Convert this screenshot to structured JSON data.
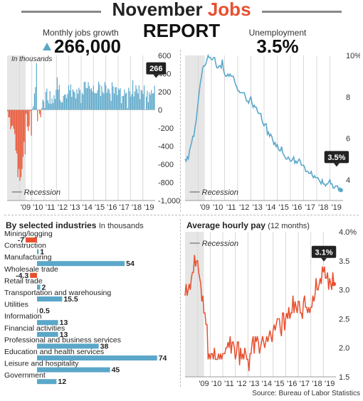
{
  "header": {
    "title_main": "November",
    "title_accent": "Jobs",
    "subtitle": "REPORT"
  },
  "kpis": {
    "jobs_label": "Monthly jobs growth",
    "jobs_value": "266,000",
    "unemp_label": "Unemployment",
    "unemp_value": "3.5%"
  },
  "colors": {
    "blue": "#5aa7c9",
    "red": "#e8502f",
    "recession_shade": "#e6e6e6",
    "callout": "#222222",
    "accent_text": "#e8502f"
  },
  "source": "Source: Bureau of Labor Statistics",
  "chart_data": [
    {
      "id": "jobs",
      "type": "bar",
      "annotation_units": "In thousands",
      "recession_label": "Recession",
      "recession_range": [
        2007.92,
        2009.5
      ],
      "ylim": [
        -1000,
        600
      ],
      "yticks": [
        600,
        400,
        200,
        0,
        -200,
        -400,
        -600,
        -800,
        -1000
      ],
      "ytick_labels": [
        "600",
        "400",
        "200",
        "0",
        "-200",
        "-400",
        "-600",
        "-800",
        "-1,000"
      ],
      "xlim": [
        2008.0,
        2020.0
      ],
      "xtick_labels": [
        "'09",
        "'10",
        "'11",
        "'12",
        "'13",
        "'14",
        "'15",
        "'16",
        "'17",
        "'18",
        "'19"
      ],
      "xtick_years": [
        2009,
        2010,
        2011,
        2012,
        2013,
        2014,
        2015,
        2016,
        2017,
        2018,
        2019
      ],
      "last_value_label": "266",
      "grid": "x",
      "values": [
        -14,
        -86,
        -80,
        -214,
        -182,
        -172,
        -210,
        -267,
        -450,
        -481,
        -743,
        -652,
        -781,
        -741,
        -652,
        -519,
        -352,
        -490,
        -45,
        -187,
        -234,
        -178,
        -12,
        -285,
        14,
        39,
        180,
        251,
        516,
        -126,
        -6,
        -46,
        -82,
        20,
        113,
        94,
        19,
        199,
        234,
        106,
        71,
        207,
        65,
        125,
        75,
        161,
        119,
        222,
        359,
        223,
        276,
        108,
        82,
        84,
        153,
        167,
        170,
        129,
        174,
        268,
        216,
        282,
        144,
        227,
        208,
        191,
        126,
        227,
        178,
        244,
        220,
        75,
        187,
        170,
        306,
        311,
        243,
        240,
        305,
        263,
        226,
        240,
        203,
        269,
        187,
        185,
        183,
        218,
        310,
        280,
        152,
        262,
        198,
        181,
        306,
        271,
        190,
        236,
        225,
        182,
        100,
        304,
        259,
        181,
        249,
        251,
        164,
        240,
        221,
        238,
        73,
        153,
        153,
        224,
        178,
        190,
        18,
        244,
        205,
        145,
        176,
        326,
        148,
        202,
        271,
        230,
        182,
        270,
        118,
        223,
        211,
        175,
        268,
        1,
        147,
        210,
        85,
        193,
        166,
        219,
        180,
        185,
        266
      ]
    },
    {
      "id": "unemployment",
      "type": "line",
      "recession_label": "Recession",
      "recession_range": [
        2007.92,
        2009.5
      ],
      "ylim": [
        3,
        10
      ],
      "yticks": [
        10,
        8,
        6,
        4
      ],
      "ytick_labels": [
        "10%",
        "8",
        "6",
        "4"
      ],
      "xlim": [
        2008.0,
        2020.0
      ],
      "xtick_labels": [
        "'09",
        "'10",
        "'11",
        "'12",
        "'13",
        "'14",
        "'15",
        "'16",
        "'17",
        "'18",
        "'19"
      ],
      "xtick_years": [
        2009,
        2010,
        2011,
        2012,
        2013,
        2014,
        2015,
        2016,
        2017,
        2018,
        2019
      ],
      "last_value_label": "3.5%",
      "start_year": 2008.0,
      "values": [
        5.0,
        4.9,
        5.1,
        5.0,
        5.4,
        5.6,
        5.8,
        6.1,
        6.1,
        6.5,
        6.8,
        7.3,
        7.8,
        8.3,
        8.7,
        9.0,
        9.4,
        9.5,
        9.5,
        9.6,
        9.8,
        10.0,
        9.9,
        9.9,
        9.8,
        9.8,
        9.9,
        9.9,
        9.6,
        9.4,
        9.4,
        9.5,
        9.5,
        9.4,
        9.8,
        9.3,
        9.1,
        9.0,
        9.0,
        9.1,
        9.0,
        9.1,
        9.0,
        9.0,
        9.0,
        8.8,
        8.6,
        8.5,
        8.3,
        8.3,
        8.2,
        8.2,
        8.2,
        8.2,
        8.2,
        8.0,
        7.8,
        7.8,
        7.7,
        7.9,
        8.0,
        7.7,
        7.5,
        7.6,
        7.5,
        7.5,
        7.3,
        7.2,
        7.2,
        7.2,
        6.9,
        6.7,
        6.6,
        6.7,
        6.7,
        6.2,
        6.3,
        6.1,
        6.2,
        6.1,
        5.9,
        5.7,
        5.8,
        5.6,
        5.7,
        5.5,
        5.4,
        5.4,
        5.6,
        5.3,
        5.2,
        5.1,
        5.0,
        5.0,
        5.1,
        5.0,
        4.9,
        4.9,
        5.0,
        5.1,
        4.8,
        4.9,
        4.8,
        4.9,
        5.0,
        4.9,
        4.7,
        4.7,
        4.7,
        4.6,
        4.4,
        4.4,
        4.4,
        4.3,
        4.3,
        4.4,
        4.2,
        4.1,
        4.2,
        4.1,
        4.1,
        4.1,
        4.0,
        3.9,
        3.8,
        4.0,
        3.8,
        3.8,
        3.7,
        3.8,
        3.8,
        3.9,
        4.0,
        3.8,
        3.8,
        3.6,
        3.6,
        3.7,
        3.7,
        3.7,
        3.5,
        3.6,
        3.5
      ]
    },
    {
      "id": "industries",
      "type": "bar",
      "title": "By selected industries",
      "units": "In thousands",
      "categories": [
        "Mining/logging",
        "Construction",
        "Manufacturing",
        "Wholesale trade",
        "Retail trade",
        "Transportation and warehousing",
        "Utilities",
        "Information",
        "Financial activities",
        "Professional and business services",
        "Education and health services",
        "Leisure and hospitality",
        "Government"
      ],
      "values": [
        -7,
        1,
        54,
        -4.3,
        2,
        15.5,
        0.5,
        13,
        13,
        38,
        74,
        45,
        12
      ],
      "value_labels": [
        "-7",
        "1",
        "54",
        "-4.3",
        "2",
        "15.5",
        "0.5",
        "13",
        "13",
        "38",
        "74",
        "45",
        "12"
      ]
    },
    {
      "id": "wages",
      "type": "line",
      "title": "Average hourly pay",
      "title_note": "(12 months)",
      "recession_label": "Recession",
      "recession_range": [
        2007.92,
        2009.5
      ],
      "ylim": [
        1.5,
        4.0
      ],
      "yticks": [
        4.0,
        3.5,
        3.0,
        2.5,
        2.0,
        1.5
      ],
      "ytick_labels": [
        "4.0%",
        "3.5",
        "3.0",
        "2.5",
        "2.0",
        "1.5"
      ],
      "xlim": [
        2008.0,
        2020.0
      ],
      "xtick_labels": [
        "'09",
        "'10",
        "'11",
        "'12",
        "'13",
        "'14",
        "'15",
        "'16",
        "'17",
        "'18",
        "'19"
      ],
      "xtick_years": [
        2009,
        2010,
        2011,
        2012,
        2013,
        2014,
        2015,
        2016,
        2017,
        2018,
        2019
      ],
      "last_value_label": "3.1%",
      "start_year": 2008.0,
      "values": [
        2.9,
        3.1,
        2.9,
        3.0,
        3.1,
        3.0,
        3.2,
        3.3,
        3.3,
        3.6,
        3.4,
        3.5,
        3.5,
        3.3,
        3.2,
        3.1,
        2.8,
        2.9,
        2.6,
        2.6,
        2.4,
        2.4,
        1.8,
        1.9,
        1.8,
        1.9,
        1.9,
        1.8,
        2.0,
        1.8,
        1.8,
        1.8,
        1.9,
        1.8,
        1.9,
        1.8,
        1.9,
        1.9,
        1.9,
        2.0,
        2.0,
        2.1,
        2.0,
        2.2,
        1.9,
        2.1,
        2.1,
        2.0,
        1.8,
        1.9,
        2.1,
        2.1,
        1.7,
        2.0,
        1.8,
        1.9,
        1.8,
        2.0,
        1.9,
        1.8,
        1.8,
        1.6,
        1.9,
        1.9,
        2.1,
        2.2,
        1.9,
        2.2,
        2.1,
        2.2,
        2.1,
        1.9,
        2.0,
        2.1,
        2.2,
        2.1,
        2.0,
        2.1,
        2.2,
        2.1,
        2.2,
        2.3,
        2.2,
        2.1,
        2.3,
        2.4,
        2.3,
        2.4,
        2.5,
        2.5,
        2.5,
        2.3,
        2.2,
        2.6,
        2.6,
        2.3,
        2.5,
        2.6,
        2.5,
        2.7,
        2.5,
        2.6,
        2.6,
        2.9,
        2.6,
        2.8,
        2.7,
        2.6,
        2.8,
        2.8,
        2.6,
        2.6,
        2.5,
        2.8,
        2.9,
        2.7,
        2.7,
        2.6,
        2.7,
        2.6,
        2.7,
        2.7,
        2.9,
        2.8,
        2.9,
        3.2,
        3.0,
        3.0,
        3.1,
        3.2,
        3.1,
        3.4,
        3.3,
        3.4,
        3.2,
        3.2,
        3.3,
        3.0,
        3.2,
        3.1,
        3.0,
        3.3,
        3.1
      ]
    }
  ]
}
